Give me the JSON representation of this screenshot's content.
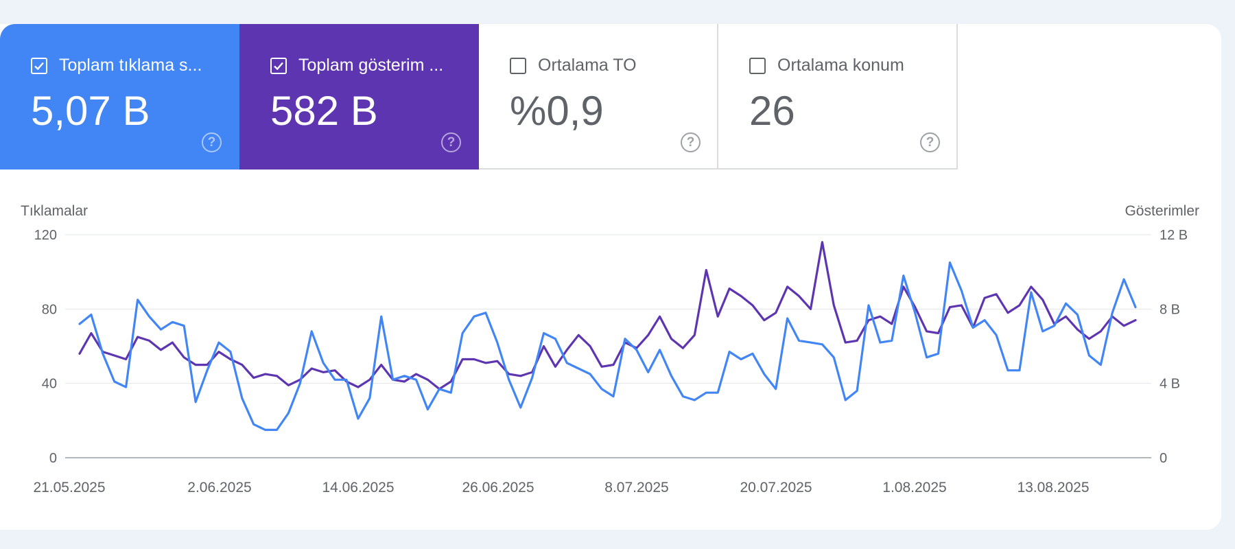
{
  "tiles": [
    {
      "label": "Toplam tıklama s...",
      "value": "5,07 B",
      "checked": true,
      "color": "#4285f4"
    },
    {
      "label": "Toplam gösterim ...",
      "value": "582 B",
      "checked": true,
      "color": "#5e35b1"
    },
    {
      "label": "Ortalama TO",
      "value": "%0,9",
      "checked": false
    },
    {
      "label": "Ortalama konum",
      "value": "26",
      "checked": false
    }
  ],
  "help_glyph": "?",
  "chart_data": {
    "type": "line",
    "ylabel_left": "Tıklamalar",
    "ylabel_right": "Gösterimler",
    "yticks_left": [
      "120",
      "80",
      "40",
      "0"
    ],
    "yticks_right": [
      "12 B",
      "8 B",
      "4 B",
      "0"
    ],
    "ylim_left": [
      0,
      120
    ],
    "ylim_right": [
      0,
      12
    ],
    "xticks": [
      "21.05.2025",
      "2.06.2025",
      "14.06.2025",
      "26.06.2025",
      "8.07.2025",
      "20.07.2025",
      "1.08.2025",
      "13.08.2025"
    ],
    "grid": true,
    "series": [
      {
        "axis": "left",
        "color": "#4285f4",
        "values": [
          72,
          77,
          56,
          41,
          38,
          85,
          76,
          69,
          73,
          71,
          30,
          47,
          62,
          57,
          32,
          18,
          15,
          15,
          24,
          40,
          68,
          51,
          42,
          42,
          21,
          32,
          76,
          42,
          44,
          42,
          26,
          37,
          35,
          67,
          76,
          78,
          62,
          42,
          27,
          43,
          67,
          64,
          51,
          48,
          45,
          37,
          33,
          64,
          58,
          46,
          58,
          44,
          33,
          31,
          35,
          35,
          57,
          53,
          56,
          45,
          37,
          75,
          63,
          62,
          61,
          54,
          31,
          36,
          82,
          62,
          63,
          98,
          78,
          54,
          56,
          105,
          90,
          70,
          74,
          66,
          47,
          47,
          89,
          68,
          71,
          83,
          77,
          55,
          50,
          78,
          96,
          81
        ]
      },
      {
        "axis": "right",
        "color": "#5e35b1",
        "values": [
          5.6,
          6.7,
          5.7,
          5.5,
          5.3,
          6.5,
          6.3,
          5.8,
          6.2,
          5.4,
          5.0,
          5.0,
          5.7,
          5.3,
          5.0,
          4.3,
          4.5,
          4.4,
          3.9,
          4.2,
          4.8,
          4.6,
          4.7,
          4.1,
          3.8,
          4.2,
          5.0,
          4.2,
          4.1,
          4.5,
          4.2,
          3.7,
          4.1,
          5.3,
          5.3,
          5.1,
          5.2,
          4.5,
          4.4,
          4.6,
          6.0,
          4.9,
          5.8,
          6.6,
          6.0,
          4.9,
          5.0,
          6.2,
          5.9,
          6.6,
          7.6,
          6.4,
          5.9,
          6.6,
          10.1,
          7.6,
          9.1,
          8.7,
          8.2,
          7.4,
          7.8,
          9.2,
          8.7,
          8.0,
          11.6,
          8.2,
          6.2,
          6.3,
          7.4,
          7.6,
          7.2,
          9.2,
          8.1,
          6.8,
          6.7,
          8.1,
          8.2,
          7.0,
          8.6,
          8.8,
          7.8,
          8.2,
          9.2,
          8.5,
          7.2,
          7.6,
          6.9,
          6.4,
          6.8,
          7.6,
          7.1,
          7.4
        ]
      }
    ]
  }
}
